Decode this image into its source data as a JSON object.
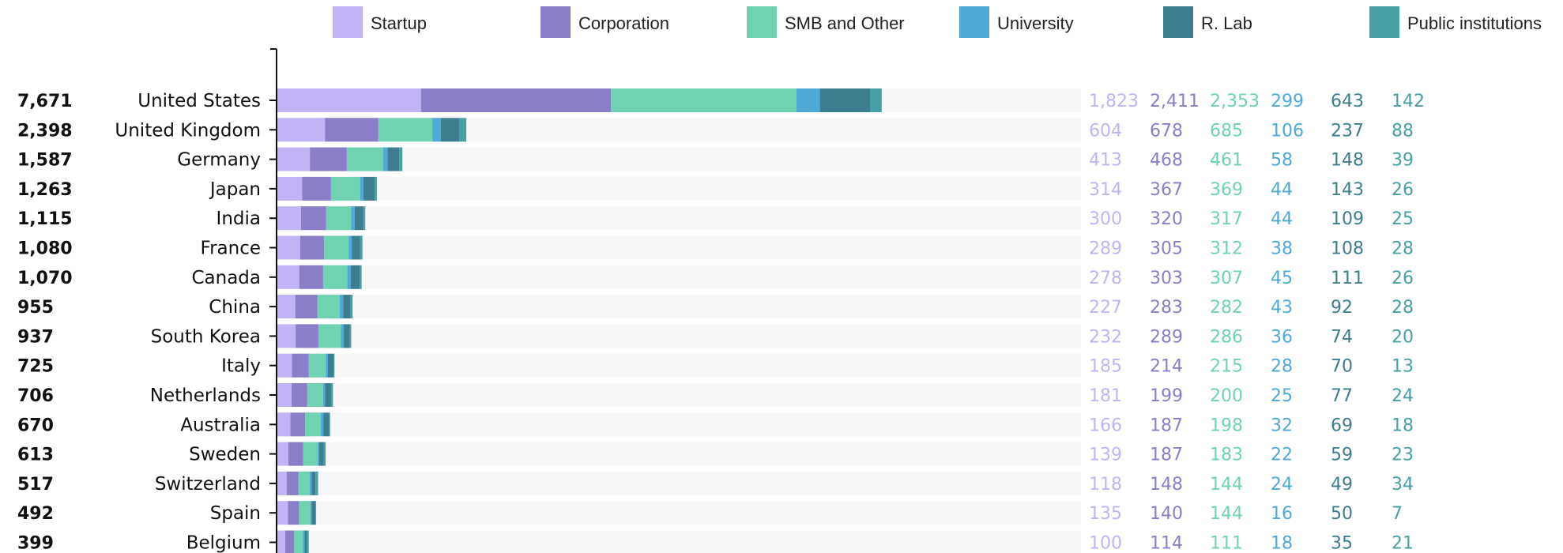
{
  "chart_data": {
    "type": "bar",
    "stacked": true,
    "orientation": "horizontal",
    "legend_position": "top",
    "series": [
      {
        "name": "Startup",
        "color": "#c1b3f6",
        "values": [
          1823,
          604,
          413,
          314,
          300,
          289,
          278,
          227,
          232,
          185,
          181,
          166,
          139,
          118,
          135,
          100
        ]
      },
      {
        "name": "Corporation",
        "color": "#8b7ec9",
        "values": [
          2411,
          678,
          468,
          367,
          320,
          305,
          303,
          283,
          289,
          214,
          199,
          187,
          187,
          148,
          140,
          114
        ]
      },
      {
        "name": "SMB and Other",
        "color": "#6fd3b1",
        "values": [
          2353,
          685,
          461,
          369,
          317,
          312,
          307,
          282,
          286,
          215,
          200,
          198,
          183,
          144,
          144,
          111
        ]
      },
      {
        "name": "University",
        "color": "#4fa9d6",
        "values": [
          299,
          106,
          58,
          44,
          44,
          38,
          45,
          43,
          36,
          28,
          25,
          32,
          22,
          24,
          16,
          18
        ]
      },
      {
        "name": "R. Lab",
        "color": "#3d7e8e",
        "values": [
          643,
          237,
          148,
          143,
          109,
          108,
          111,
          92,
          74,
          70,
          77,
          69,
          59,
          49,
          50,
          35
        ]
      },
      {
        "name": "Public institutions",
        "color": "#46a0a4",
        "values": [
          142,
          88,
          39,
          26,
          25,
          28,
          26,
          28,
          20,
          13,
          24,
          18,
          23,
          34,
          7,
          21
        ]
      }
    ],
    "categories": [
      "United States",
      "United Kingdom",
      "Germany",
      "Japan",
      "India",
      "France",
      "Canada",
      "China",
      "South Korea",
      "Italy",
      "Netherlands",
      "Australia",
      "Sweden",
      "Switzerland",
      "Spain",
      "Belgium"
    ],
    "totals": [
      "7,671",
      "2,398",
      "1,587",
      "1,263",
      "1,115",
      "1,080",
      "1,070",
      "955",
      "937",
      "725",
      "706",
      "670",
      "613",
      "517",
      "492",
      "399"
    ],
    "value_labels": [
      [
        "1,823",
        "2,411",
        "2,353",
        "299",
        "643",
        "142"
      ],
      [
        "604",
        "678",
        "685",
        "106",
        "237",
        "88"
      ],
      [
        "413",
        "468",
        "461",
        "58",
        "148",
        "39"
      ],
      [
        "314",
        "367",
        "369",
        "44",
        "143",
        "26"
      ],
      [
        "300",
        "320",
        "317",
        "44",
        "109",
        "25"
      ],
      [
        "289",
        "305",
        "312",
        "38",
        "108",
        "28"
      ],
      [
        "278",
        "303",
        "307",
        "45",
        "111",
        "26"
      ],
      [
        "227",
        "283",
        "282",
        "43",
        "92",
        "28"
      ],
      [
        "232",
        "289",
        "286",
        "36",
        "74",
        "20"
      ],
      [
        "185",
        "214",
        "215",
        "28",
        "70",
        "13"
      ],
      [
        "181",
        "199",
        "200",
        "25",
        "77",
        "24"
      ],
      [
        "166",
        "187",
        "198",
        "32",
        "69",
        "18"
      ],
      [
        "139",
        "187",
        "183",
        "22",
        "59",
        "23"
      ],
      [
        "118",
        "148",
        "144",
        "24",
        "49",
        "34"
      ],
      [
        "135",
        "140",
        "144",
        "16",
        "50",
        "7"
      ],
      [
        "100",
        "114",
        "111",
        "18",
        "35",
        "21"
      ]
    ],
    "xlim": [
      0,
      10200
    ],
    "grid": false
  }
}
